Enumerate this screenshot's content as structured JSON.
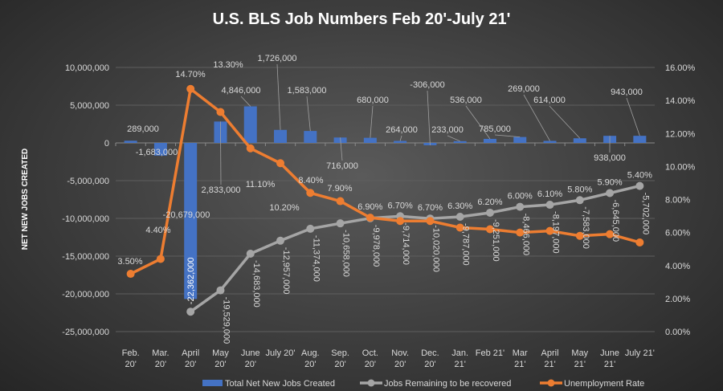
{
  "chart_data": {
    "type": "bar+line",
    "title": "U.S. BLS Job Numbers Feb 20'-July 21'",
    "ylabel": "NET NEW JOBS CREATED",
    "y2label": "",
    "ylim": [
      -25000000,
      10000000
    ],
    "y2lim": [
      0,
      16
    ],
    "yticks": [
      "10,000,000",
      "5,000,000",
      "0",
      "-5,000,000",
      "-10,000,000",
      "-15,000,000",
      "-20,000,000",
      "-25,000,000"
    ],
    "y2ticks": [
      "16.00%",
      "14.00%",
      "12.00%",
      "10.00%",
      "8.00%",
      "6.00%",
      "4.00%",
      "2.00%",
      "0.00%"
    ],
    "grid": true,
    "legend_position": "bottom-inside",
    "categories": [
      "Feb.\n20'",
      "Mar.\n20'",
      "April\n20'",
      "May\n20'",
      "June\n20'",
      "July 20'",
      "Aug.\n20'",
      "Sep.\n20'",
      "Oct.\n20'",
      "Nov.\n20'",
      "Dec.\n20'",
      "Jan.\n21'",
      "Feb 21'",
      "Mar\n21'",
      "April\n21'",
      "May\n21'",
      "June\n21'",
      "July 21'"
    ],
    "series": [
      {
        "name": "Total Net New Jobs Created",
        "type": "bar",
        "axis": "left",
        "color": "#4472c4",
        "values": [
          289000,
          -1683000,
          -20679000,
          2833000,
          4846000,
          1726000,
          1583000,
          716000,
          680000,
          264000,
          -306000,
          233000,
          536000,
          785000,
          269000,
          614000,
          938000,
          943000
        ],
        "labels": [
          "289,000",
          "-1,683,000",
          "-20,679,000",
          "2,833,000",
          "4,846,000",
          "1,726,000",
          "1,583,000",
          "716,000",
          "680,000",
          "264,000",
          "-306,000",
          "233,000",
          "536,000",
          "785,000",
          "269,000",
          "614,000",
          "938,000",
          "943,000"
        ]
      },
      {
        "name": "Jobs Remaining to be recovered",
        "type": "line",
        "axis": "left",
        "color": "#a5a5a5",
        "values": [
          null,
          null,
          -22362000,
          -19529000,
          -14683000,
          -12957000,
          -11374000,
          -10658000,
          -9978000,
          -9714000,
          -10020000,
          -9787000,
          -9251000,
          -8466000,
          -8197000,
          -7583000,
          -6645000,
          -5702000
        ],
        "labels": [
          "",
          "",
          "-22,362,000",
          "-19,529,000",
          "-14,683,000",
          "-12,957,000",
          "-11,374,000",
          "-10,658,000",
          "-9,978,000",
          "-9,714,000",
          "-10,020,000",
          "-9,787,000",
          "-9,251,000",
          "-8,466,000",
          "-8,197,000",
          "-7,583,000",
          "-6,645,000",
          "-5,702,000"
        ]
      },
      {
        "name": "Unemployment Rate",
        "type": "line",
        "axis": "right",
        "color": "#ed7d31",
        "values": [
          3.5,
          4.4,
          14.7,
          13.3,
          11.1,
          10.2,
          8.4,
          7.9,
          6.9,
          6.7,
          6.7,
          6.3,
          6.2,
          6.0,
          6.1,
          5.8,
          5.9,
          5.4
        ],
        "labels": [
          "3.50%",
          "4.40%",
          "14.70%",
          "13.30%",
          "11.10%",
          "10.20%",
          "8.40%",
          "7.90%",
          "6.90%",
          "6.70%",
          "6.70%",
          "6.30%",
          "6.20%",
          "6.00%",
          "6.10%",
          "5.80%",
          "5.90%",
          "5.40%"
        ]
      }
    ]
  }
}
